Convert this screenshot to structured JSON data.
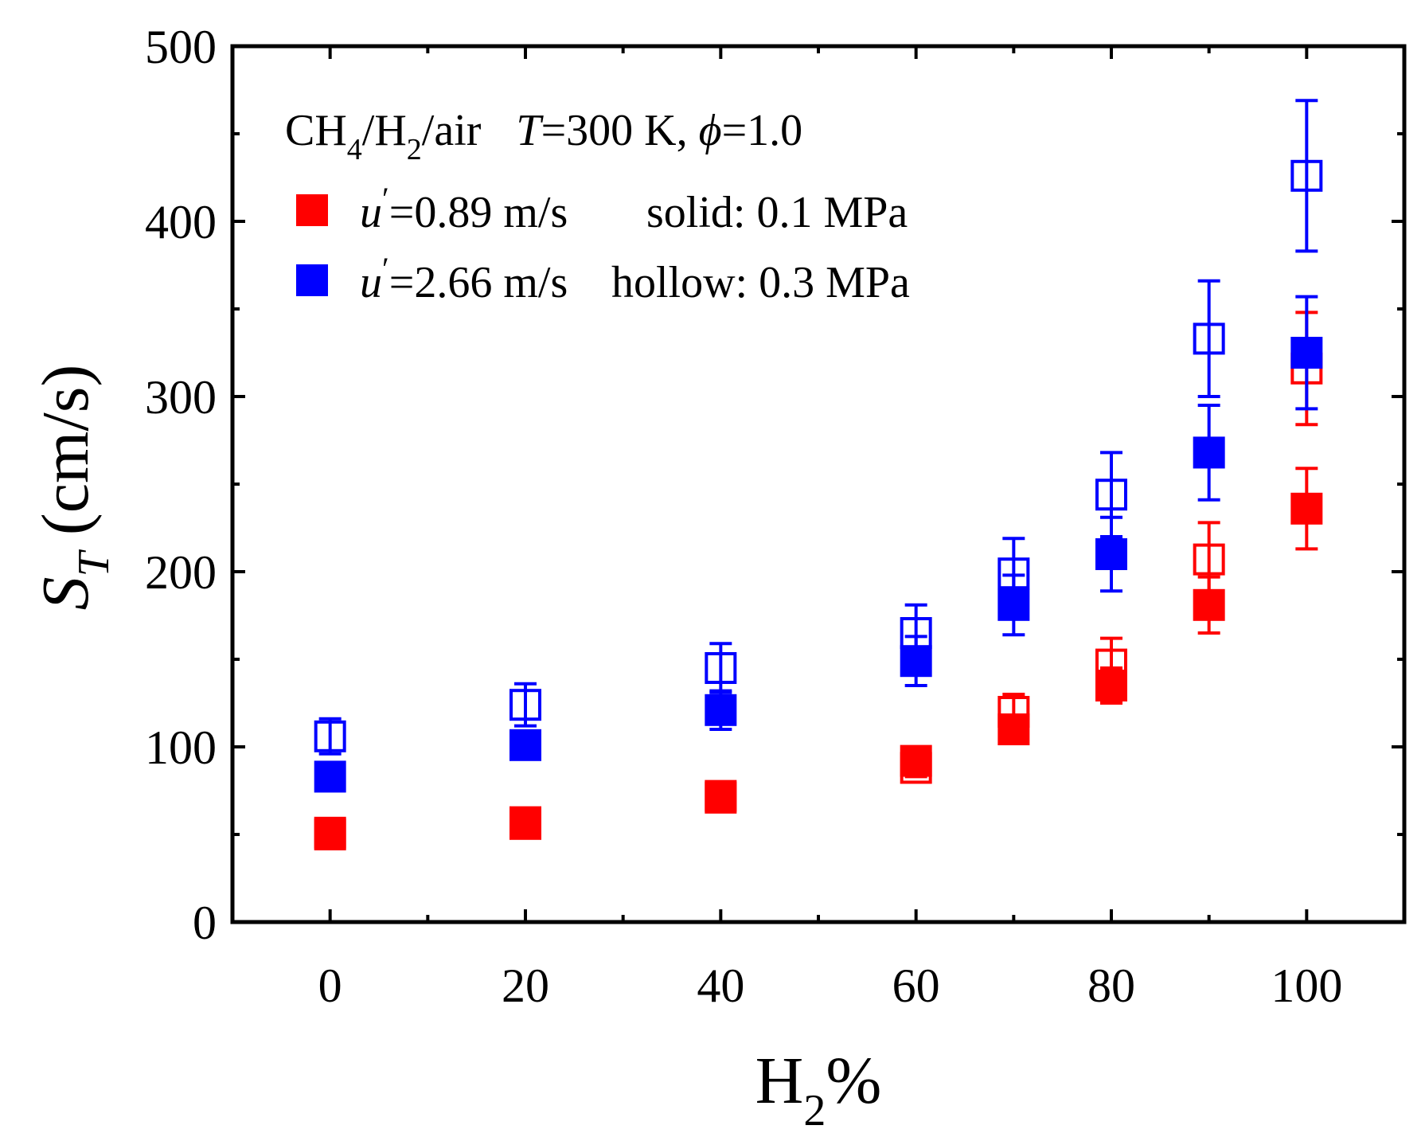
{
  "chart_data": {
    "type": "scatter",
    "xlabel": "H",
    "xlabel_sub": "2",
    "xlabel_suffix": "%",
    "ylabel": "S",
    "ylabel_sub": "T",
    "ylabel_suffix": " (cm/s)",
    "xlim": [
      -10,
      110
    ],
    "ylim": [
      0,
      500
    ],
    "x_ticks": [
      0,
      20,
      40,
      60,
      80,
      100
    ],
    "x_tick_labels": [
      "0",
      "20",
      "40",
      "60",
      "80",
      "100"
    ],
    "x_minor_ticks": [
      10,
      30,
      50,
      70,
      90
    ],
    "y_ticks": [
      0,
      100,
      200,
      300,
      400,
      500
    ],
    "y_tick_labels": [
      "0",
      "100",
      "200",
      "300",
      "400",
      "500"
    ],
    "y_minor_ticks": [
      50,
      150,
      250,
      350,
      450
    ],
    "grid": false,
    "annotation": {
      "mix": "CH",
      "mix_sub1": "4",
      "mix_mid": "/H",
      "mix_sub2": "2",
      "mix_end": "/air",
      "temp_symbol": "T",
      "temp_value": "=300 K,",
      "phi_symbol": "ϕ",
      "phi_value": "=1.0"
    },
    "legend": {
      "position": "top-left",
      "entries": [
        {
          "symbol": "u",
          "prime": "′",
          "text": "=0.89 m/s",
          "note": "solid: 0.1 MPa",
          "color": "#ff0000"
        },
        {
          "symbol": "u",
          "prime": "′",
          "text": "=2.66 m/s",
          "note": "hollow: 0.3 MPa",
          "color": "#0000ff"
        }
      ]
    },
    "series": [
      {
        "color": "#ff0000",
        "filled": true,
        "x": [
          0,
          20,
          40,
          60,
          70,
          80,
          90,
          100
        ],
        "y": [
          51,
          57,
          72,
          92,
          110,
          135,
          181,
          236
        ],
        "err": [
          5,
          5,
          4,
          7,
          8,
          10,
          16,
          23
        ]
      },
      {
        "color": "#ff0000",
        "filled": false,
        "x": [
          0,
          20,
          40,
          60,
          70,
          80,
          90,
          100
        ],
        "y": [
          50,
          56,
          71,
          88,
          120,
          147,
          207,
          316
        ],
        "err": [
          6,
          5,
          4,
          5,
          10,
          15,
          21,
          32
        ]
      },
      {
        "color": "#0000ff",
        "filled": true,
        "x": [
          0,
          20,
          40,
          60,
          70,
          80,
          90,
          100
        ],
        "y": [
          83,
          101,
          121,
          149,
          181,
          210,
          268,
          325
        ],
        "err": [
          6,
          7,
          11,
          14,
          17,
          21,
          27,
          32
        ]
      },
      {
        "color": "#0000ff",
        "filled": false,
        "x": [
          0,
          20,
          40,
          60,
          70,
          80,
          90,
          100
        ],
        "y": [
          106,
          124,
          145,
          165,
          199,
          244,
          333,
          426
        ],
        "err": [
          10,
          12,
          14,
          16,
          20,
          24,
          33,
          43
        ]
      }
    ]
  }
}
